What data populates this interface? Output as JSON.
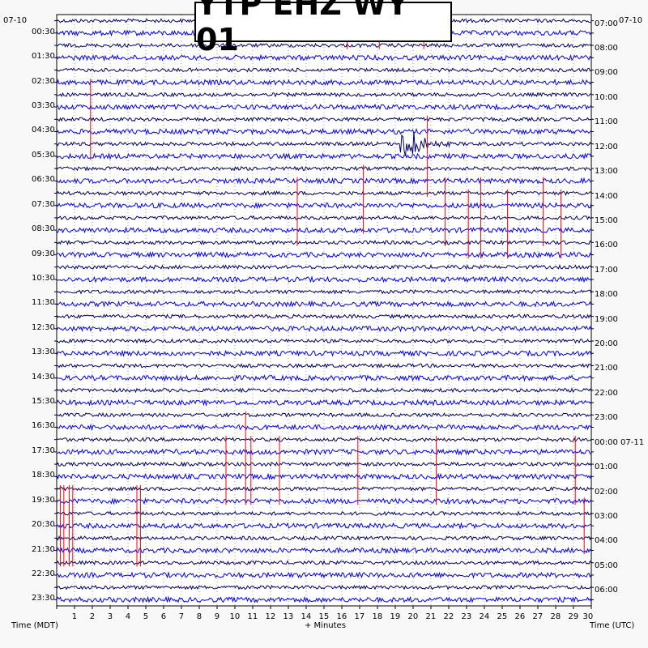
{
  "chart_data": {
    "type": "helicorder",
    "title": "YTP EHZ WY 01",
    "left_date": "07-10",
    "right_date": "07-10",
    "right_date_change": "07-11",
    "xlabel": "+ Minutes",
    "left_axis_label": "Time (MDT)",
    "right_axis_label": "Time (UTC)",
    "x_range": [
      0,
      30
    ],
    "x_ticks": [
      "1",
      "2",
      "3",
      "4",
      "5",
      "6",
      "7",
      "8",
      "9",
      "10",
      "11",
      "12",
      "13",
      "14",
      "15",
      "16",
      "17",
      "18",
      "19",
      "20",
      "21",
      "22",
      "23",
      "24",
      "25",
      "26",
      "27",
      "28",
      "29",
      "30"
    ],
    "left_ticks": [
      "00:30",
      "01:30",
      "02:30",
      "03:30",
      "04:30",
      "05:30",
      "06:30",
      "07:30",
      "08:30",
      "09:30",
      "10:30",
      "11:30",
      "12:30",
      "13:30",
      "14:30",
      "15:30",
      "16:30",
      "17:30",
      "18:30",
      "19:30",
      "20:30",
      "21:30",
      "22:30",
      "23:30"
    ],
    "right_ticks": [
      "07:00",
      "08:00",
      "09:00",
      "10:00",
      "11:00",
      "12:00",
      "13:00",
      "14:00",
      "15:00",
      "16:00",
      "17:00",
      "18:00",
      "19:00",
      "20:00",
      "21:00",
      "22:00",
      "23:00",
      "00:00 07-11",
      "01:00",
      "02:00",
      "03:00",
      "04:00",
      "05:00",
      "06:00"
    ],
    "trace_count": 48,
    "trace_colors": [
      "#000066",
      "#0000ff"
    ],
    "event_color": "#ff0000",
    "events": [
      {
        "trace": 10,
        "minute": 19.5,
        "type": "earthquake"
      }
    ],
    "marker_lines": [
      {
        "minute": 1.9,
        "from_trace": 5,
        "to_trace": 11
      },
      {
        "minute": 16.3,
        "from_trace": 0,
        "to_trace": 2
      },
      {
        "minute": 18.1,
        "from_trace": 1,
        "to_trace": 2
      },
      {
        "minute": 20.6,
        "from_trace": 1,
        "to_trace": 2
      },
      {
        "minute": 20.8,
        "from_trace": 8,
        "to_trace": 14
      },
      {
        "minute": 13.5,
        "from_trace": 13,
        "to_trace": 18
      },
      {
        "minute": 17.2,
        "from_trace": 12,
        "to_trace": 17
      },
      {
        "minute": 21.8,
        "from_trace": 13,
        "to_trace": 18
      },
      {
        "minute": 23.1,
        "from_trace": 14,
        "to_trace": 19
      },
      {
        "minute": 23.8,
        "from_trace": 13,
        "to_trace": 19
      },
      {
        "minute": 25.3,
        "from_trace": 14,
        "to_trace": 19
      },
      {
        "minute": 27.3,
        "from_trace": 13,
        "to_trace": 18
      },
      {
        "minute": 28.3,
        "from_trace": 14,
        "to_trace": 19
      },
      {
        "minute": 9.5,
        "from_trace": 34,
        "to_trace": 39
      },
      {
        "minute": 10.6,
        "from_trace": 32,
        "to_trace": 39
      },
      {
        "minute": 10.9,
        "from_trace": 34,
        "to_trace": 39
      },
      {
        "minute": 12.5,
        "from_trace": 34,
        "to_trace": 39
      },
      {
        "minute": 16.9,
        "from_trace": 34,
        "to_trace": 39
      },
      {
        "minute": 21.3,
        "from_trace": 34,
        "to_trace": 39
      },
      {
        "minute": 29.1,
        "from_trace": 34,
        "to_trace": 39
      },
      {
        "minute": 0.2,
        "from_trace": 38,
        "to_trace": 44
      },
      {
        "minute": 0.4,
        "from_trace": 38,
        "to_trace": 44
      },
      {
        "minute": 0.7,
        "from_trace": 38,
        "to_trace": 44
      },
      {
        "minute": 0.9,
        "from_trace": 38,
        "to_trace": 44
      },
      {
        "minute": 4.5,
        "from_trace": 38,
        "to_trace": 44
      },
      {
        "minute": 4.7,
        "from_trace": 38,
        "to_trace": 44
      },
      {
        "minute": 29.6,
        "from_trace": 39,
        "to_trace": 43
      }
    ]
  }
}
